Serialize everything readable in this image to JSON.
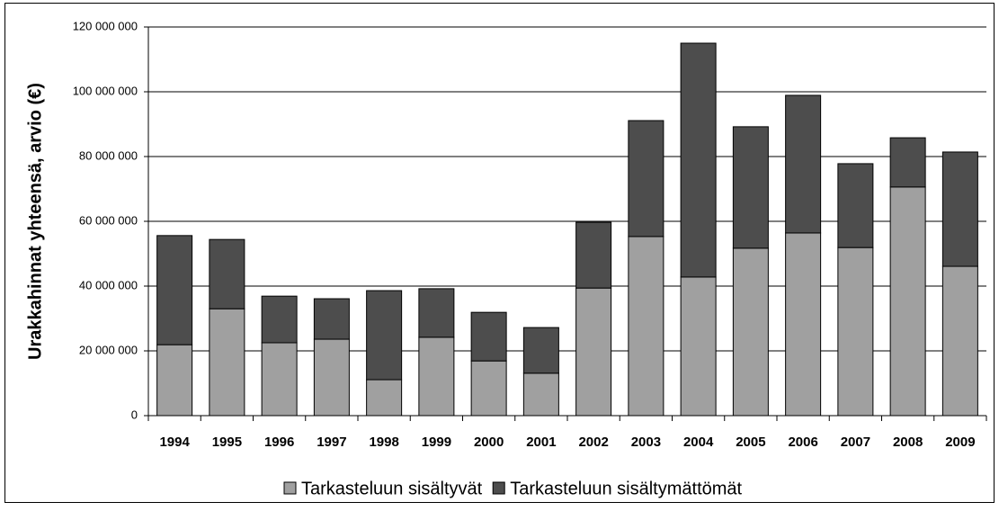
{
  "chart_data": {
    "type": "stacked_bar",
    "y_label": "Urakkahinnat yhteensä, arvio (€)",
    "categories": [
      "1994",
      "1995",
      "1996",
      "1997",
      "1998",
      "1999",
      "2000",
      "2001",
      "2002",
      "2003",
      "2004",
      "2005",
      "2006",
      "2007",
      "2008",
      "2009"
    ],
    "series": [
      {
        "name": "Tarkasteluun sisältyvät",
        "color": "#a0a0a0",
        "values": [
          21900000,
          33000000,
          22500000,
          23600000,
          11100000,
          24200000,
          16900000,
          13100000,
          39400000,
          55300000,
          42800000,
          51700000,
          56400000,
          51900000,
          70600000,
          46100000
        ]
      },
      {
        "name": "Tarkasteluun sisältymättömät",
        "color": "#4d4d4d",
        "values": [
          33700000,
          21400000,
          14400000,
          12500000,
          27500000,
          15000000,
          15000000,
          14100000,
          20300000,
          35800000,
          72200000,
          37500000,
          42500000,
          25900000,
          15200000,
          35300000
        ]
      }
    ],
    "ylim": [
      0,
      120000000
    ],
    "yticks": [
      {
        "value": 0,
        "label": "0"
      },
      {
        "value": 20000000,
        "label": "20 000 000"
      },
      {
        "value": 40000000,
        "label": "40 000 000"
      },
      {
        "value": 60000000,
        "label": "60 000 000"
      },
      {
        "value": 80000000,
        "label": "80 000 000"
      },
      {
        "value": 100000000,
        "label": "100 000 000"
      },
      {
        "value": 120000000,
        "label": "120 000 000"
      }
    ],
    "grid": true,
    "legend": "bottom"
  }
}
